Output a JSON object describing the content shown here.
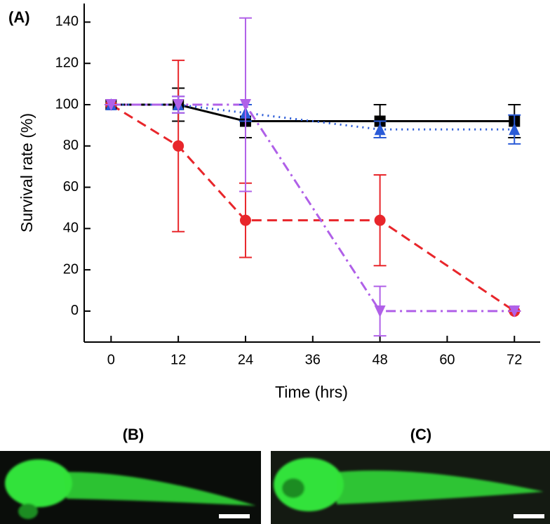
{
  "chart_data": {
    "type": "line",
    "panel_label": "(A)",
    "xlabel": "Time (hrs)",
    "ylabel": "Survival rate (%)",
    "x": [
      0,
      12,
      24,
      48,
      72
    ],
    "xlim": [
      -4.8,
      76.6
    ],
    "xticks": [
      0,
      12,
      24,
      36,
      48,
      60,
      72
    ],
    "ylim": [
      -15,
      149
    ],
    "yticks": [
      0,
      20,
      40,
      60,
      80,
      100,
      120,
      140
    ],
    "series": [
      {
        "color": "#000000",
        "linestyle": "solid",
        "marker": "square",
        "values": [
          100,
          100,
          92,
          92,
          92
        ],
        "errors": [
          0,
          8,
          8,
          8,
          8
        ]
      },
      {
        "color": "#e8262b",
        "linestyle": "dashed",
        "marker": "circle",
        "values": [
          100,
          80,
          44,
          44,
          0
        ],
        "errors": [
          0,
          41.5,
          18,
          22,
          0
        ]
      },
      {
        "color": "#2a5bd7",
        "linestyle": "dotted",
        "marker": "triangle-up",
        "values": [
          100,
          100,
          96,
          88,
          88
        ],
        "errors": [
          0,
          4,
          4,
          4,
          7
        ]
      },
      {
        "color": "#b060e8",
        "linestyle": "dashdot",
        "marker": "triangle-down",
        "values": [
          100,
          100,
          100,
          0,
          0
        ],
        "errors": [
          0,
          4,
          42,
          12,
          0
        ]
      }
    ]
  },
  "images": [
    {
      "label": "(B)"
    },
    {
      "label": "(C)"
    }
  ]
}
